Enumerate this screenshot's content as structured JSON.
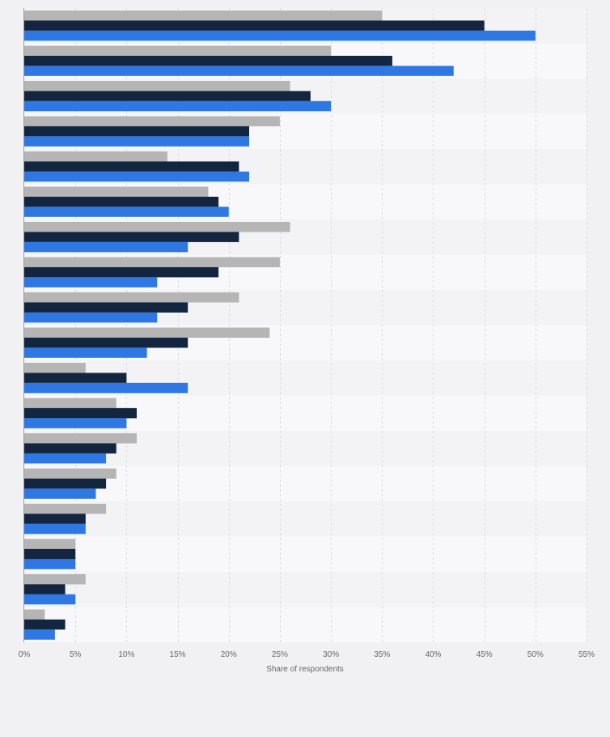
{
  "chart_data": {
    "type": "bar",
    "orientation": "horizontal",
    "categories": [
      "",
      "",
      "",
      "",
      "",
      "",
      "",
      "",
      "",
      "",
      "",
      "",
      "",
      "",
      "",
      "",
      "",
      ""
    ],
    "series": [
      {
        "values": [
          35,
          30,
          26,
          25,
          14,
          18,
          26,
          25,
          21,
          24,
          6,
          9,
          11,
          9,
          8,
          5,
          6,
          2
        ]
      },
      {
        "values": [
          45,
          36,
          28,
          22,
          21,
          19,
          21,
          19,
          16,
          16,
          10,
          11,
          9,
          8,
          6,
          5,
          4,
          4
        ]
      },
      {
        "values": [
          50,
          42,
          30,
          22,
          22,
          20,
          16,
          13,
          13,
          12,
          16,
          10,
          8,
          7,
          6,
          5,
          5,
          3
        ]
      }
    ],
    "colors": [
      "#b5b5b5",
      "#13253f",
      "#2f78e3"
    ],
    "xlim": [
      0,
      55
    ],
    "xticks": [
      0,
      5,
      10,
      15,
      20,
      25,
      30,
      35,
      40,
      45,
      50,
      55
    ],
    "tick_suffix": "%",
    "xlabel": "Share of respondents",
    "grid": true,
    "legend": "none"
  }
}
